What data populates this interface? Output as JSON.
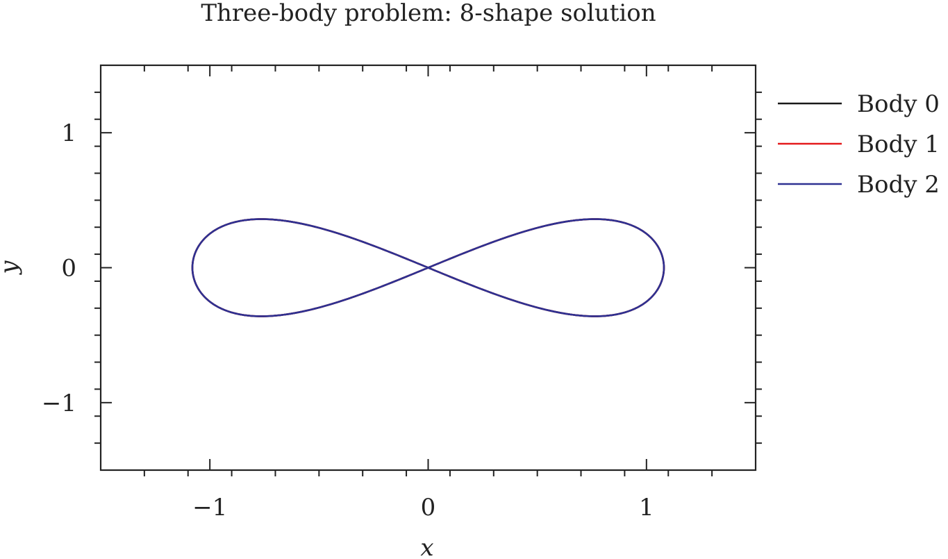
{
  "chart_data": {
    "type": "line",
    "title": "Three-body problem: 8-shape solution",
    "xlabel": "x",
    "ylabel": "y",
    "xlim": [
      -1.5,
      1.5
    ],
    "ylim": [
      -1.5,
      1.5
    ],
    "x_ticks": [
      -1,
      0,
      1
    ],
    "y_ticks": [
      -1,
      0,
      1
    ],
    "x_tick_labels": [
      "−1",
      "0",
      "1"
    ],
    "y_tick_labels": [
      "−1",
      "0",
      "1"
    ],
    "minor_tick_step": 0.2,
    "grid": false,
    "legend_position": "outside-right",
    "curve_shape": "figure-eight",
    "curve_amplitude_x": 1.08,
    "curve_amplitude_y": 0.36,
    "series": [
      {
        "name": "Body 0",
        "color": "#1a1a1a",
        "x": [
          0,
          0.431,
          0.776,
          0.986,
          1.06,
          1.032,
          0.925,
          0.737,
          0.462,
          0.145,
          -0.145,
          -0.462,
          -0.737,
          -0.925,
          -1.032,
          -1.06,
          -0.986,
          -0.776,
          -0.431,
          0,
          0.431,
          0.776,
          0.986,
          1.06,
          1.032,
          0.925,
          0.737,
          0.462,
          0.145,
          -0.145,
          -0.462,
          -0.737,
          -0.925,
          -1.032,
          -1.06,
          -0.986,
          -0.776,
          -0.431,
          0
        ],
        "y": [
          0,
          0.198,
          0.318,
          0.359,
          0.336,
          0.262,
          0.15,
          0.021,
          -0.099,
          -0.186,
          -0.186,
          -0.099,
          0.021,
          0.15,
          0.262,
          0.336,
          0.359,
          0.318,
          0.198,
          0,
          -0.198,
          -0.318,
          -0.359,
          -0.336,
          -0.262,
          -0.15,
          -0.021,
          0.099,
          0.186,
          0.186,
          0.099,
          -0.021,
          -0.15,
          -0.262,
          -0.336,
          -0.359,
          -0.318,
          -0.198,
          0
        ]
      },
      {
        "name": "Body 1",
        "color": "#e41a1c",
        "x": [
          0,
          0.431,
          0.776,
          0.986,
          1.06,
          1.032,
          0.925,
          0.737,
          0.462,
          0.145,
          -0.145,
          -0.462,
          -0.737,
          -0.925,
          -1.032,
          -1.06,
          -0.986,
          -0.776,
          -0.431,
          0,
          0.431,
          0.776,
          0.986,
          1.06,
          1.032,
          0.925,
          0.737,
          0.462,
          0.145,
          -0.145,
          -0.462,
          -0.737,
          -0.925,
          -1.032,
          -1.06,
          -0.986,
          -0.776,
          -0.431,
          0
        ],
        "y": [
          0,
          0.198,
          0.318,
          0.359,
          0.336,
          0.262,
          0.15,
          0.021,
          -0.099,
          -0.186,
          -0.186,
          -0.099,
          0.021,
          0.15,
          0.262,
          0.336,
          0.359,
          0.318,
          0.198,
          0,
          -0.198,
          -0.318,
          -0.359,
          -0.336,
          -0.262,
          -0.15,
          -0.021,
          0.099,
          0.186,
          0.186,
          0.099,
          -0.021,
          -0.15,
          -0.262,
          -0.336,
          -0.359,
          -0.318,
          -0.198,
          0
        ]
      },
      {
        "name": "Body 2",
        "color": "#2e3192",
        "x": [
          0,
          0.431,
          0.776,
          0.986,
          1.06,
          1.032,
          0.925,
          0.737,
          0.462,
          0.145,
          -0.145,
          -0.462,
          -0.737,
          -0.925,
          -1.032,
          -1.06,
          -0.986,
          -0.776,
          -0.431,
          0,
          0.431,
          0.776,
          0.986,
          1.06,
          1.032,
          0.925,
          0.737,
          0.462,
          0.145,
          -0.145,
          -0.462,
          -0.737,
          -0.925,
          -1.032,
          -1.06,
          -0.986,
          -0.776,
          -0.431,
          0
        ],
        "y": [
          0,
          0.198,
          0.318,
          0.359,
          0.336,
          0.262,
          0.15,
          0.021,
          -0.099,
          -0.186,
          -0.186,
          -0.099,
          0.021,
          0.15,
          0.262,
          0.336,
          0.359,
          0.318,
          0.198,
          0,
          -0.198,
          -0.318,
          -0.359,
          -0.336,
          -0.262,
          -0.15,
          -0.021,
          0.099,
          0.186,
          0.186,
          0.099,
          -0.021,
          -0.15,
          -0.262,
          -0.336,
          -0.359,
          -0.318,
          -0.198,
          0
        ]
      }
    ]
  }
}
